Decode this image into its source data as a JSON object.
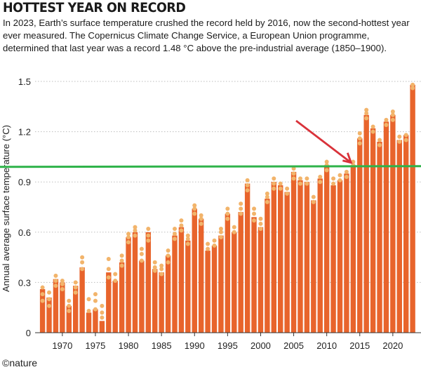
{
  "header": {
    "title": "HOTTEST YEAR ON RECORD",
    "subtitle": "In 2023, Earth’s surface temperature crushed the record held by 2016, now the second-hottest year ever measured. The Copernicus Climate Change Service, a European Union programme, determined that last year was a record 1.48 °C above the pre-industrial average (1850–1900)."
  },
  "footer": {
    "brand": "©nature"
  },
  "colors": {
    "bar": "#e8642c",
    "dot": "#f2b46b",
    "reference_line": "#2fb34a",
    "arrow": "#d9323a",
    "grid": "#bdbdbd"
  },
  "chart_data": {
    "type": "bar",
    "ylabel": "Annual average surface temperature (°C)",
    "xlabel": "",
    "ylim": [
      0,
      1.5
    ],
    "yticks": [
      0,
      0.3,
      0.6,
      0.9,
      1.2,
      1.5
    ],
    "ytick_labels": [
      "0",
      "0.3",
      "0.6",
      "0.9",
      "1.2",
      "1.5"
    ],
    "xticks": [
      1970,
      1975,
      1980,
      1985,
      1990,
      1995,
      2000,
      2005,
      2010,
      2015,
      2020
    ],
    "xtick_labels": [
      "1970",
      "1975",
      "1980",
      "1985",
      "1990",
      "1995",
      "2000",
      "2005",
      "2010",
      "2015",
      "2020"
    ],
    "grid": "horizontal",
    "reference_line_value": 0.99,
    "arrow_target_year": 2014,
    "categories": [
      1967,
      1968,
      1969,
      1970,
      1971,
      1972,
      1973,
      1974,
      1975,
      1976,
      1977,
      1978,
      1979,
      1980,
      1981,
      1982,
      1983,
      1984,
      1985,
      1986,
      1987,
      1988,
      1989,
      1990,
      1991,
      1992,
      1993,
      1994,
      1995,
      1996,
      1997,
      1998,
      1999,
      2000,
      2001,
      2002,
      2003,
      2004,
      2005,
      2006,
      2007,
      2008,
      2009,
      2010,
      2011,
      2012,
      2013,
      2014,
      2015,
      2016,
      2017,
      2018,
      2019,
      2020,
      2021,
      2022,
      2023
    ],
    "values": [
      0.26,
      0.21,
      0.32,
      0.3,
      0.16,
      0.28,
      0.39,
      0.12,
      0.14,
      0.07,
      0.36,
      0.31,
      0.42,
      0.57,
      0.6,
      0.43,
      0.6,
      0.38,
      0.36,
      0.46,
      0.58,
      0.63,
      0.55,
      0.74,
      0.68,
      0.49,
      0.52,
      0.58,
      0.71,
      0.6,
      0.72,
      0.89,
      0.69,
      0.63,
      0.8,
      0.9,
      0.88,
      0.84,
      0.96,
      0.91,
      0.9,
      0.79,
      0.92,
      1.0,
      0.88,
      0.91,
      0.95,
      1.0,
      1.16,
      1.3,
      1.22,
      1.14,
      1.26,
      1.3,
      1.15,
      1.18,
      1.48
    ],
    "dot_sets": [
      [
        0.19,
        0.23,
        0.27
      ],
      [
        0.16,
        0.2,
        0.24
      ],
      [
        0.28,
        0.31,
        0.34
      ],
      [
        0.26,
        0.29,
        0.31
      ],
      [
        0.13,
        0.16,
        0.19
      ],
      [
        0.24,
        0.27,
        0.3
      ],
      [
        0.38,
        0.42,
        0.45
      ],
      [
        0.13,
        0.2
      ],
      [
        0.14,
        0.19,
        0.23
      ],
      [
        0.09,
        0.12,
        0.16
      ],
      [
        0.33,
        0.38,
        0.44
      ],
      [
        0.31,
        0.35
      ],
      [
        0.4,
        0.43,
        0.46
      ],
      [
        0.54,
        0.57,
        0.59
      ],
      [
        0.58,
        0.61,
        0.63
      ],
      [
        0.43,
        0.47,
        0.5
      ],
      [
        0.55,
        0.58,
        0.62
      ],
      [
        0.37,
        0.39,
        0.42
      ],
      [
        0.35,
        0.38,
        0.4
      ],
      [
        0.42,
        0.46,
        0.49
      ],
      [
        0.56,
        0.59,
        0.62
      ],
      [
        0.61,
        0.64,
        0.67
      ],
      [
        0.53,
        0.56,
        0.58
      ],
      [
        0.71,
        0.74,
        0.76
      ],
      [
        0.65,
        0.68,
        0.7
      ],
      [
        0.5,
        0.53
      ],
      [
        0.52,
        0.55
      ],
      [
        0.57,
        0.6,
        0.62
      ],
      [
        0.68,
        0.71,
        0.74
      ],
      [
        0.6,
        0.63
      ],
      [
        0.71,
        0.74,
        0.77
      ],
      [
        0.85,
        0.88,
        0.91
      ],
      [
        0.67,
        0.71,
        0.74
      ],
      [
        0.62,
        0.65,
        0.68
      ],
      [
        0.78,
        0.81,
        0.83
      ],
      [
        0.86,
        0.89,
        0.92
      ],
      [
        0.86,
        0.89
      ],
      [
        0.83,
        0.86
      ],
      [
        0.92,
        0.95,
        0.98
      ],
      [
        0.89,
        0.92
      ],
      [
        0.89,
        0.92
      ],
      [
        0.78,
        0.81
      ],
      [
        0.9,
        0.93
      ],
      [
        0.97,
        1.0,
        1.02
      ],
      [
        0.89,
        0.92
      ],
      [
        0.91,
        0.94
      ],
      [
        0.93,
        0.96
      ],
      [
        1.0,
        1.02
      ],
      [
        1.13,
        1.16,
        1.19
      ],
      [
        1.28,
        1.31,
        1.33
      ],
      [
        1.2,
        1.23
      ],
      [
        1.12,
        1.15
      ],
      [
        1.24,
        1.27
      ],
      [
        1.27,
        1.3,
        1.32
      ],
      [
        1.14,
        1.17
      ],
      [
        1.15,
        1.18
      ],
      [
        1.46,
        1.48
      ]
    ]
  }
}
